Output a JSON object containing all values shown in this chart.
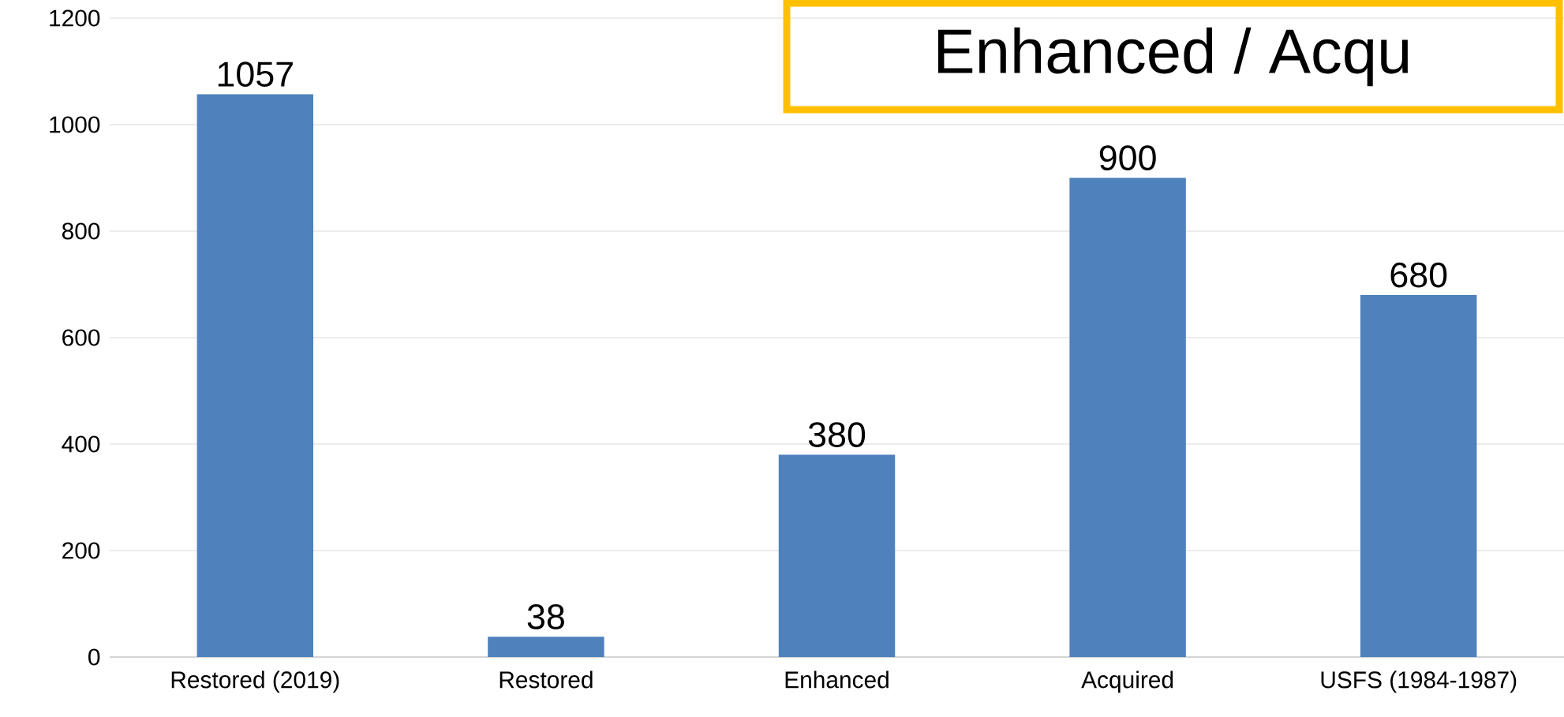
{
  "chart_data": {
    "type": "bar",
    "categories": [
      "Restored (2019)",
      "Restored",
      "Enhanced",
      "Acquired",
      "USFS (1984-1987)"
    ],
    "values": [
      1057,
      38,
      380,
      900,
      680
    ],
    "color": "#4f81bd",
    "ylim": [
      0,
      1200
    ],
    "yticks": [
      0,
      200,
      400,
      600,
      800,
      1000,
      1200
    ],
    "grid": "y",
    "data_labels": true,
    "annotations": [
      "Enhanced / Acqu"
    ]
  }
}
